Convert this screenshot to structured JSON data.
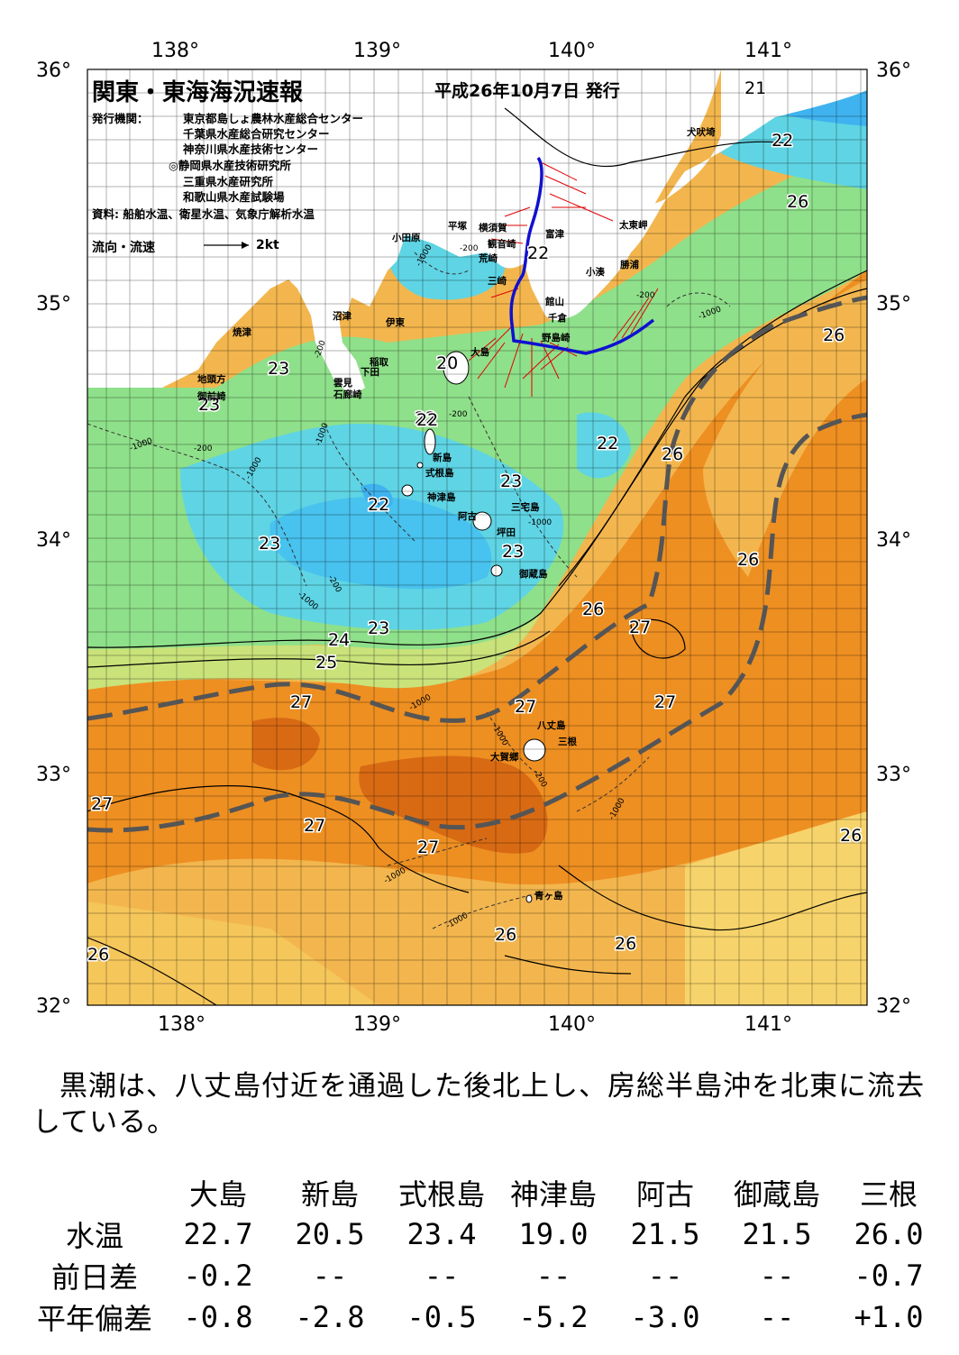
{
  "header": {
    "title": "関東・東海海況速報",
    "date": "平成26年10月7日 発行",
    "issuer_label": "発行機関：",
    "issuers": [
      "東京都島しょ農林水産総合センター",
      "千葉県水産総合研究センター",
      "神奈川県水産技術センター",
      "◎静岡県水産技術研究所",
      "三重県水産研究所",
      "和歌山県水産試験場"
    ],
    "source": "資料: 船舶水温、衛星水温、気象庁解析水温",
    "flow_legend": "流向・流速",
    "flow_scale": "2kt"
  },
  "axes": {
    "lon_labels": [
      "138°",
      "139°",
      "140°",
      "141°"
    ],
    "lat_labels": [
      "36°",
      "35°",
      "34°",
      "33°",
      "32°"
    ]
  },
  "place_names": [
    "犬吠埼",
    "太東岬",
    "勝浦",
    "小湊",
    "館山",
    "千倉",
    "野島崎",
    "富津",
    "横須賀",
    "観音崎",
    "平塚",
    "小田原",
    "荒崎",
    "三崎",
    "沼津",
    "伊東",
    "焼津",
    "稲取",
    "下田",
    "雲見",
    "石廊崎",
    "地頭方",
    "御前崎",
    "大島",
    "新島",
    "式根島",
    "神津島",
    "三宅島",
    "阿古",
    "坪田",
    "御蔵島",
    "八丈島",
    "三根",
    "大賀郷",
    "青ヶ島"
  ],
  "temperature_labels": [
    "21",
    "22",
    "26",
    "26",
    "23",
    "23",
    "22",
    "22",
    "23",
    "22",
    "23",
    "23",
    "26",
    "26",
    "23",
    "24",
    "25",
    "26",
    "27",
    "27",
    "27",
    "27",
    "27",
    "27",
    "27",
    "26",
    "26",
    "26",
    "26",
    "20",
    "22",
    "22"
  ],
  "depth_labels": [
    "-1000",
    "-200"
  ],
  "summary": "黒潮は、八丈島付近を通過した後北上し、房総半島沖を北東に流去している。",
  "sst_table": {
    "columns": [
      "大島",
      "新島",
      "式根島",
      "神津島",
      "阿古",
      "御蔵島",
      "三根"
    ],
    "rows": [
      {
        "label": "水温",
        "values": [
          "22.7",
          "20.5",
          "23.4",
          "19.0",
          "21.5",
          "21.5",
          "26.0"
        ]
      },
      {
        "label": "前日差",
        "values": [
          "-0.2",
          "--",
          "--",
          "--",
          "--",
          "--",
          "-0.7"
        ]
      },
      {
        "label": "平年偏差",
        "values": [
          "-0.8",
          "-2.8",
          "-0.5",
          "-5.2",
          "-3.0",
          "--",
          "+1.0"
        ]
      }
    ]
  },
  "colors": {
    "cold_blue": "#3fb3f0",
    "cyan": "#5fd4e4",
    "green": "#8fe08a",
    "yellow": "#f4d55a",
    "light_orange": "#f3b64e",
    "orange": "#ee8f22",
    "dark_orange": "#d86a14",
    "kuroshio_axis": "#555555",
    "ship_track": "#1010d0",
    "flow_vectors": "#e00000"
  }
}
